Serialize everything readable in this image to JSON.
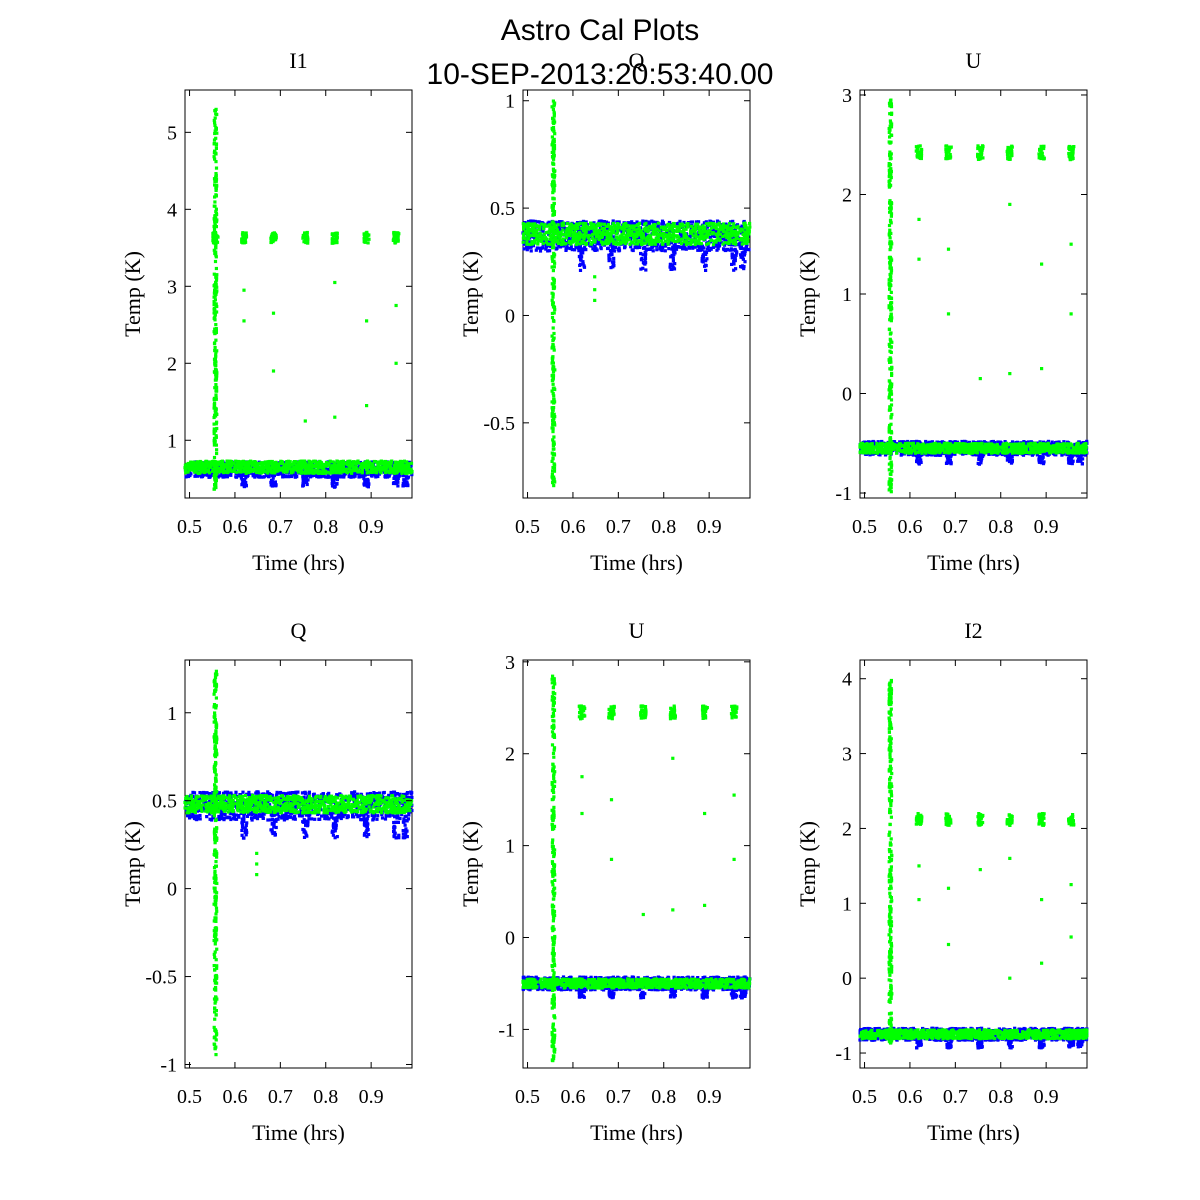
{
  "figure": {
    "title_line1": "Astro Cal Plots",
    "title_line2": "10-SEP-2013:20:53:40.00"
  },
  "colors": {
    "series_a": "#0000ff",
    "series_b": "#00ff00",
    "axes": "#000000",
    "background": "#ffffff"
  },
  "chart_data": [
    {
      "type": "scatter",
      "title": "I1",
      "xlabel": "Time (hrs)",
      "ylabel": "Temp (K)",
      "xlim": [
        0.49,
        0.99
      ],
      "ylim": [
        0.25,
        5.55
      ],
      "xticks": [
        0.5,
        0.6,
        0.7,
        0.8,
        0.9
      ],
      "yticks": [
        1,
        2,
        3,
        4,
        5
      ],
      "ytick_labels": [
        "1",
        "2",
        "3",
        "4",
        "5"
      ],
      "series": [
        {
          "color": "#0000ff",
          "baseline": 0.62,
          "spread": 0.1
        },
        {
          "color": "#00ff00",
          "baseline": 0.65,
          "spread": 0.08,
          "spike": {
            "x": 0.557,
            "range": [
              0.35,
              5.3
            ]
          },
          "high_cluster": {
            "level": 3.63,
            "spread": 0.07,
            "x": [
              0.557,
              0.62,
              0.685,
              0.755,
              0.82,
              0.89,
              0.955
            ]
          },
          "outliers": [
            [
              0.62,
              2.95
            ],
            [
              0.62,
              2.55
            ],
            [
              0.685,
              2.65
            ],
            [
              0.685,
              1.9
            ],
            [
              0.755,
              1.25
            ],
            [
              0.82,
              3.05
            ],
            [
              0.82,
              1.3
            ],
            [
              0.89,
              2.55
            ],
            [
              0.89,
              1.45
            ],
            [
              0.955,
              2.75
            ],
            [
              0.955,
              2.0
            ]
          ]
        }
      ]
    },
    {
      "type": "scatter",
      "title": "Q",
      "xlabel": "Time (hrs)",
      "ylabel": "Temp (K)",
      "xlim": [
        0.49,
        0.99
      ],
      "ylim": [
        -0.85,
        1.05
      ],
      "xticks": [
        0.5,
        0.6,
        0.7,
        0.8,
        0.9
      ],
      "yticks": [
        -0.5,
        0,
        0.5,
        1
      ],
      "ytick_labels": [
        "-0.5",
        "0",
        "0.5",
        "1"
      ],
      "series": [
        {
          "color": "#0000ff",
          "baseline": 0.37,
          "spread": 0.07
        },
        {
          "color": "#00ff00",
          "baseline": 0.38,
          "spread": 0.05,
          "spike": {
            "x": 0.557,
            "range": [
              -0.8,
              1.0
            ]
          },
          "outliers": [
            [
              0.648,
              0.18
            ],
            [
              0.648,
              0.12
            ],
            [
              0.648,
              0.07
            ]
          ]
        }
      ]
    },
    {
      "type": "scatter",
      "title": "U",
      "xlabel": "Time (hrs)",
      "ylabel": "Temp (K)",
      "xlim": [
        0.49,
        0.99
      ],
      "ylim": [
        -1.05,
        3.05
      ],
      "xticks": [
        0.5,
        0.6,
        0.7,
        0.8,
        0.9
      ],
      "yticks": [
        -1,
        0,
        1,
        2,
        3
      ],
      "ytick_labels": [
        "-1",
        "0",
        "1",
        "2",
        "3"
      ],
      "series": [
        {
          "color": "#0000ff",
          "baseline": -0.55,
          "spread": 0.07
        },
        {
          "color": "#00ff00",
          "baseline": -0.55,
          "spread": 0.05,
          "spike": {
            "x": 0.557,
            "range": [
              -1.0,
              2.95
            ]
          },
          "high_cluster": {
            "level": 2.42,
            "spread": 0.07,
            "x": [
              0.62,
              0.685,
              0.755,
              0.82,
              0.89,
              0.955
            ]
          },
          "outliers": [
            [
              0.62,
              1.75
            ],
            [
              0.62,
              1.35
            ],
            [
              0.685,
              1.45
            ],
            [
              0.685,
              0.8
            ],
            [
              0.755,
              0.15
            ],
            [
              0.82,
              1.9
            ],
            [
              0.82,
              0.2
            ],
            [
              0.89,
              1.3
            ],
            [
              0.89,
              0.25
            ],
            [
              0.955,
              1.5
            ],
            [
              0.955,
              0.8
            ]
          ]
        }
      ]
    },
    {
      "type": "scatter",
      "title": "Q",
      "xlabel": "Time (hrs)",
      "ylabel": "Temp (K)",
      "xlim": [
        0.49,
        0.99
      ],
      "ylim": [
        -1.02,
        1.3
      ],
      "xticks": [
        0.5,
        0.6,
        0.7,
        0.8,
        0.9
      ],
      "yticks": [
        -1,
        -0.5,
        0,
        0.5,
        1
      ],
      "ytick_labels": [
        "-1",
        "-0.5",
        "0",
        "0.5",
        "1"
      ],
      "series": [
        {
          "color": "#0000ff",
          "baseline": 0.47,
          "spread": 0.08
        },
        {
          "color": "#00ff00",
          "baseline": 0.48,
          "spread": 0.05,
          "spike": {
            "x": 0.557,
            "range": [
              -0.95,
              1.25
            ]
          },
          "outliers": [
            [
              0.648,
              0.2
            ],
            [
              0.648,
              0.14
            ],
            [
              0.648,
              0.08
            ]
          ]
        }
      ]
    },
    {
      "type": "scatter",
      "title": "U",
      "xlabel": "Time (hrs)",
      "ylabel": "Temp (K)",
      "xlim": [
        0.49,
        0.99
      ],
      "ylim": [
        -1.42,
        3.02
      ],
      "xticks": [
        0.5,
        0.6,
        0.7,
        0.8,
        0.9
      ],
      "yticks": [
        -1,
        0,
        1,
        2,
        3
      ],
      "ytick_labels": [
        "-1",
        "0",
        "1",
        "2",
        "3"
      ],
      "series": [
        {
          "color": "#0000ff",
          "baseline": -0.5,
          "spread": 0.07
        },
        {
          "color": "#00ff00",
          "baseline": -0.5,
          "spread": 0.05,
          "spike": {
            "x": 0.557,
            "range": [
              -1.35,
              2.85
            ]
          },
          "high_cluster": {
            "level": 2.45,
            "spread": 0.07,
            "x": [
              0.62,
              0.685,
              0.755,
              0.82,
              0.89,
              0.955
            ]
          },
          "outliers": [
            [
              0.62,
              1.75
            ],
            [
              0.62,
              1.35
            ],
            [
              0.685,
              1.5
            ],
            [
              0.685,
              0.85
            ],
            [
              0.755,
              0.25
            ],
            [
              0.82,
              1.95
            ],
            [
              0.82,
              0.3
            ],
            [
              0.89,
              1.35
            ],
            [
              0.89,
              0.35
            ],
            [
              0.955,
              1.55
            ],
            [
              0.955,
              0.85
            ]
          ]
        }
      ]
    },
    {
      "type": "scatter",
      "title": "I2",
      "xlabel": "Time (hrs)",
      "ylabel": "Temp (K)",
      "xlim": [
        0.49,
        0.99
      ],
      "ylim": [
        -1.2,
        4.25
      ],
      "xticks": [
        0.5,
        0.6,
        0.7,
        0.8,
        0.9
      ],
      "yticks": [
        -1,
        0,
        1,
        2,
        3,
        4
      ],
      "ytick_labels": [
        "-1",
        "0",
        "1",
        "2",
        "3",
        "4"
      ],
      "series": [
        {
          "color": "#0000ff",
          "baseline": -0.75,
          "spread": 0.08
        },
        {
          "color": "#00ff00",
          "baseline": -0.75,
          "spread": 0.06,
          "spike": {
            "x": 0.557,
            "range": [
              -0.9,
              4.0
            ]
          },
          "high_cluster": {
            "level": 2.12,
            "spread": 0.08,
            "x": [
              0.62,
              0.685,
              0.755,
              0.82,
              0.89,
              0.955
            ]
          },
          "outliers": [
            [
              0.62,
              1.5
            ],
            [
              0.62,
              1.05
            ],
            [
              0.685,
              1.2
            ],
            [
              0.685,
              0.45
            ],
            [
              0.755,
              1.45
            ],
            [
              0.82,
              1.6
            ],
            [
              0.82,
              0.0
            ],
            [
              0.89,
              1.05
            ],
            [
              0.89,
              0.2
            ],
            [
              0.955,
              1.25
            ],
            [
              0.955,
              0.55
            ]
          ]
        }
      ]
    }
  ]
}
